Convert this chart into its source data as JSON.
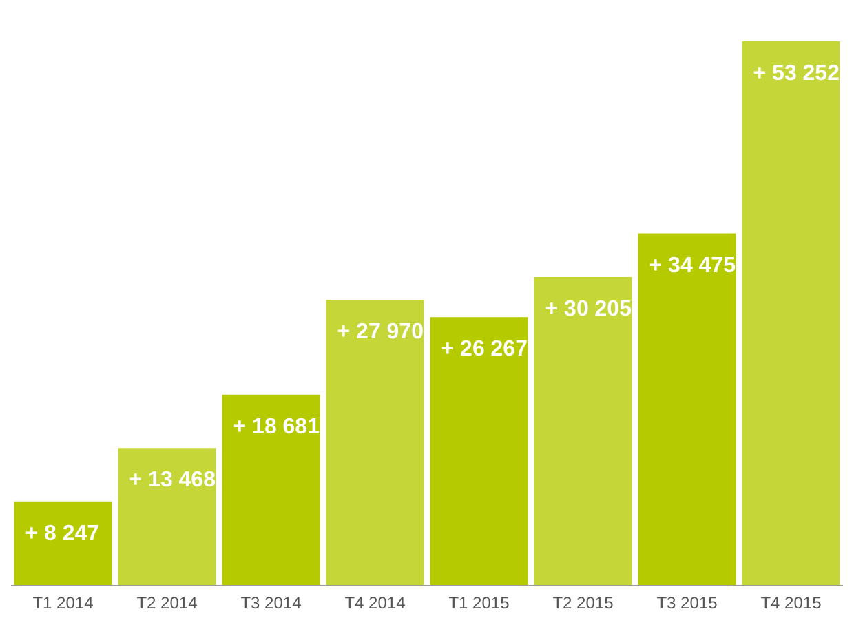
{
  "chart_data": {
    "type": "bar",
    "categories": [
      "T1 2014",
      "T2 2014",
      "T3 2014",
      "T4 2014",
      "T1 2015",
      "T2 2015",
      "T3 2015",
      "T4 2015"
    ],
    "values": [
      8247,
      13468,
      18681,
      27970,
      26267,
      30205,
      34475,
      53252
    ],
    "colors": [
      "#b5cb00",
      "#c4d638",
      "#b5cb00",
      "#c4d638",
      "#b5cb00",
      "#c4d638",
      "#b5cb00",
      "#c4d638"
    ],
    "value_labels": [
      "+ 8 247",
      "+ 13 468",
      "+ 18 681",
      "+ 27 970",
      "+ 26 267",
      "+ 30 205",
      "+ 34 475",
      "+ 53 252"
    ],
    "grid": false,
    "legend": false
  }
}
